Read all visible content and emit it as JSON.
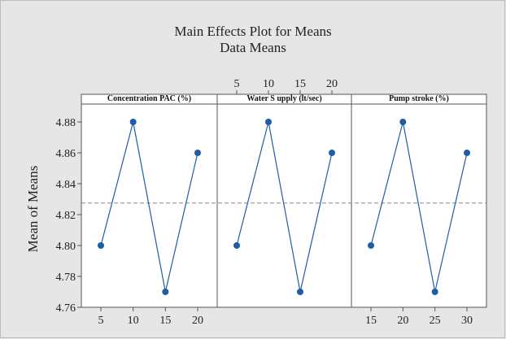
{
  "chart_data": {
    "type": "line",
    "title": "Main Effects Plot for Means",
    "subtitle": "Data Means",
    "ylabel": "Mean of Means",
    "ylim": [
      4.76,
      4.89
    ],
    "yticks": [
      4.76,
      4.78,
      4.8,
      4.82,
      4.84,
      4.86,
      4.88
    ],
    "ytick_labels": [
      "4.76",
      "4.78",
      "4.80",
      "4.82",
      "4.84",
      "4.86",
      "4.88"
    ],
    "reference_line": 4.8275,
    "grid": false,
    "line_color": "#1f5ca8",
    "panels": [
      {
        "name": "Concentration PAC (%)",
        "x": [
          5,
          10,
          15,
          20
        ],
        "x_labels": [
          "5",
          "10",
          "15",
          "20"
        ],
        "tick_position": "bottom",
        "values": [
          4.8,
          4.88,
          4.77,
          4.86
        ]
      },
      {
        "name": "Water S upply (lt/sec)",
        "x": [
          5,
          10,
          15,
          20
        ],
        "x_labels": [
          "5",
          "10",
          "15",
          "20"
        ],
        "tick_position": "top",
        "values": [
          4.8,
          4.88,
          4.77,
          4.86
        ]
      },
      {
        "name": "Pump stroke (%)",
        "x": [
          15,
          20,
          25,
          30
        ],
        "x_labels": [
          "15",
          "20",
          "25",
          "30"
        ],
        "tick_position": "bottom",
        "values": [
          4.8,
          4.88,
          4.77,
          4.86
        ]
      }
    ]
  }
}
